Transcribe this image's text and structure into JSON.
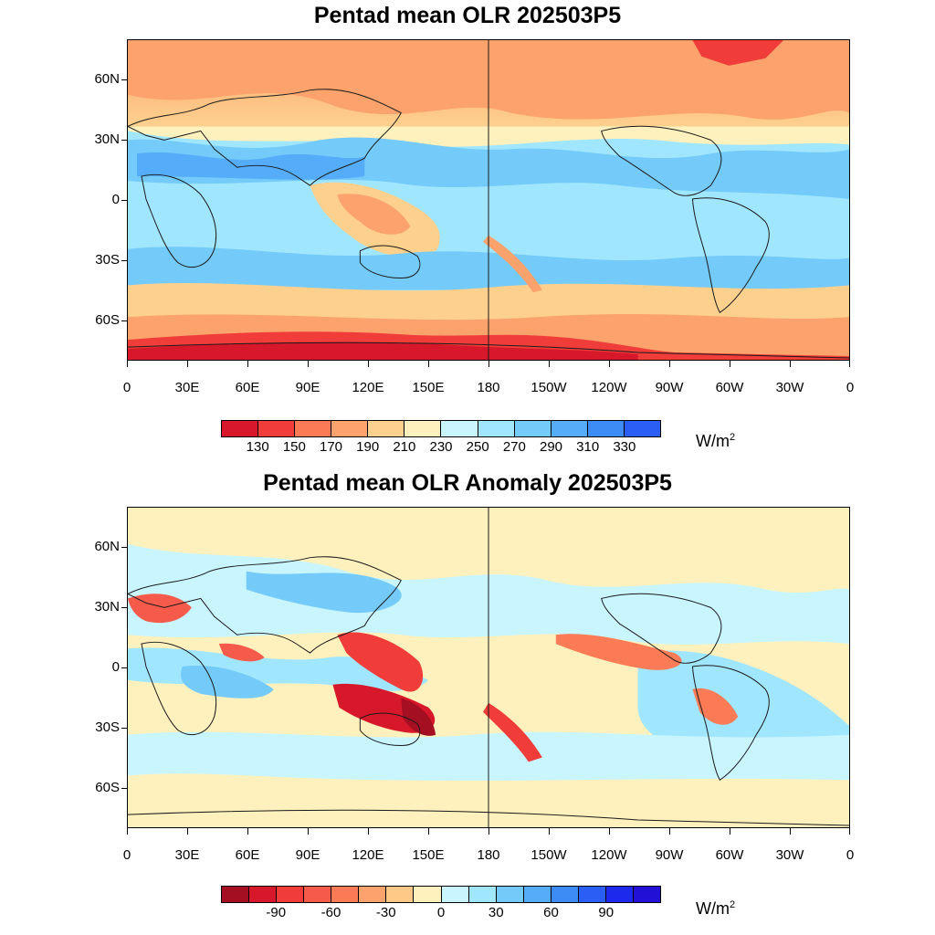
{
  "panel_top": {
    "title": "Pentad mean OLR 202503P5",
    "lat_labels": [
      "60N",
      "30N",
      "0",
      "30S",
      "60S"
    ],
    "lon_labels": [
      "0",
      "30E",
      "60E",
      "90E",
      "120E",
      "150E",
      "180",
      "150W",
      "120W",
      "90W",
      "60W",
      "30W",
      "0"
    ],
    "colorbar": {
      "colors": [
        "#d7182a",
        "#f03d3a",
        "#fa7b55",
        "#fca26c",
        "#fdd08e",
        "#fef1bd",
        "#c9f5ff",
        "#a0e6ff",
        "#74cbfa",
        "#55acf8",
        "#3d8cf5",
        "#2a5ef5"
      ],
      "labels": [
        "130",
        "150",
        "170",
        "190",
        "210",
        "230",
        "250",
        "270",
        "290",
        "310",
        "330"
      ],
      "units": "W/m",
      "units_sup": "2"
    }
  },
  "panel_bottom": {
    "title": "Pentad mean OLR Anomaly 202503P5",
    "lat_labels": [
      "60N",
      "30N",
      "0",
      "30S",
      "60S"
    ],
    "lon_labels": [
      "0",
      "30E",
      "60E",
      "90E",
      "120E",
      "150E",
      "180",
      "150W",
      "120W",
      "90W",
      "60W",
      "30W",
      "0"
    ],
    "colorbar": {
      "colors": [
        "#a50f22",
        "#d7182a",
        "#f03d3a",
        "#f65a4a",
        "#fa7b55",
        "#fca26c",
        "#fdc987",
        "#fef1bd",
        "#c9f5ff",
        "#a0e6ff",
        "#74cbfa",
        "#55acf8",
        "#3d8cf5",
        "#2a5ef5",
        "#1d29ec",
        "#2210d6"
      ],
      "labels": [
        "-90",
        "-60",
        "-30",
        "0",
        "30",
        "60",
        "90"
      ],
      "units": "W/m",
      "units_sup": "2"
    }
  },
  "colors": {
    "land_outline": "#1a1a1a",
    "top_base": "#a8e4ff",
    "bottom_base": "#fde9b8"
  }
}
